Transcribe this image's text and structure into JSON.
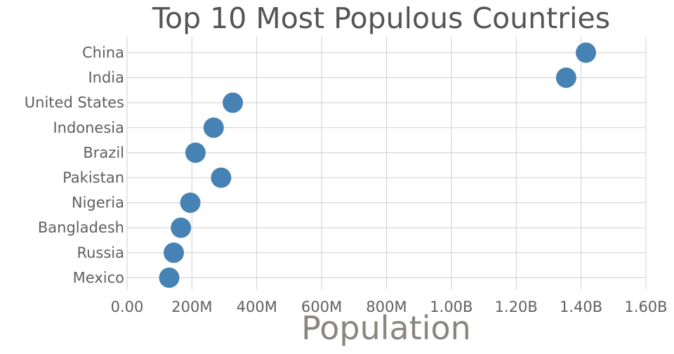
{
  "chart_data": {
    "type": "scatter",
    "title": "Top 10 Most Populous Countries",
    "xlabel": "Population",
    "ylabel": "",
    "categories": [
      "China",
      "India",
      "United States",
      "Indonesia",
      "Brazil",
      "Pakistan",
      "Nigeria",
      "Bangladesh",
      "Russia",
      "Mexico"
    ],
    "series": [
      {
        "values": [
          1415000000,
          1354000000,
          326000000,
          267000000,
          211000000,
          290000000,
          195000000,
          166000000,
          144000000,
          130000000
        ]
      }
    ],
    "x_ticks": [
      "0.00",
      "200M",
      "400M",
      "600M",
      "800M",
      "1.00B",
      "1.20B",
      "1.40B",
      "1.60B"
    ],
    "xlim": [
      0,
      1600000000
    ],
    "grid": true,
    "legend": "none",
    "colors": {
      "point": "#4682b4"
    }
  }
}
